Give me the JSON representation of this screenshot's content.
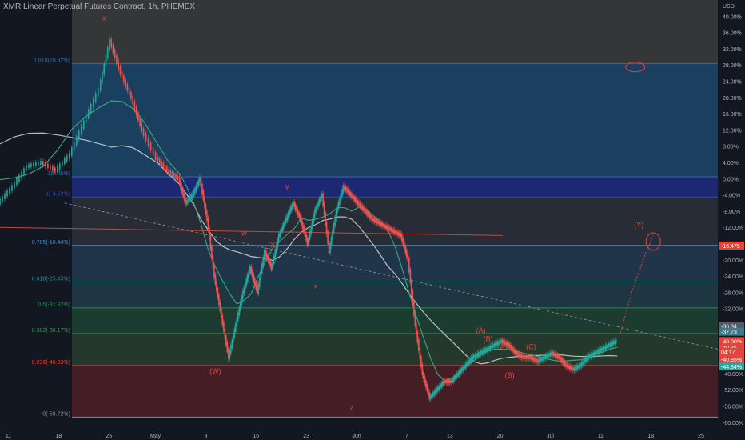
{
  "header": {
    "title": "XMR Linear Perpetual Futures Contract, 1h, PHEMEX"
  },
  "colors": {
    "background": "#131722",
    "candle_up": "#26a69a",
    "candle_down": "#ef5350",
    "wave_label": "#e0463c",
    "fib_blue": "#2f6fa3",
    "fib_navy": "#1e2a7a",
    "fib_green": "#1e4d3a",
    "fib_red": "#5a1f24"
  },
  "chart_data": {
    "type": "line",
    "price_axis": {
      "unit": "USD",
      "ticks": [
        "40.00%",
        "36.00%",
        "32.00%",
        "28.00%",
        "24.00%",
        "20.00%",
        "16.00%",
        "12.00%",
        "8.00%",
        "4.00%",
        "0.00%",
        "-4.00%",
        "-8.00%",
        "-12.00%",
        "-16.00%",
        "-20.00%",
        "-24.00%",
        "-28.00%",
        "-32.00%",
        "-36.00%",
        "-40.00%",
        "-44.00%",
        "-48.00%",
        "-52.00%",
        "-56.00%",
        "-60.00%"
      ],
      "tick_values": [
        40,
        36,
        32,
        28,
        24,
        20,
        16,
        12,
        8,
        4,
        0,
        -4,
        -8,
        -12,
        -16,
        -20,
        -24,
        -28,
        -32,
        -36,
        -40,
        -44,
        -48,
        -52,
        -56,
        -60
      ],
      "range": [
        -62,
        44
      ]
    },
    "time_axis": {
      "ticks": [
        "11",
        "18",
        "25",
        "May",
        "9",
        "16",
        "23",
        "Jun",
        "7",
        "13",
        "20",
        "Jul",
        "11",
        "18",
        "25"
      ],
      "positions": [
        0.5,
        7.5,
        14.5,
        21,
        28,
        35,
        42,
        49,
        56,
        62,
        69,
        76,
        83,
        90,
        97
      ]
    },
    "price_tags": [
      {
        "label": "-16.475",
        "value": -16.475,
        "color": "#e0463c"
      },
      {
        "label": "-36.34",
        "value": -36.3,
        "color": "#555a66"
      },
      {
        "label": "-37.73",
        "value": -37.7,
        "color": "#3d7a8a"
      },
      {
        "label": "-40.00%",
        "value": -40.0,
        "color": "#e0463c"
      },
      {
        "label": "-40.85",
        "value": -41.5,
        "color": "#e0463c"
      },
      {
        "label": "04:17",
        "value": -42.6,
        "color": "#e0463c"
      },
      {
        "label": "-40.85%",
        "value": -44.5,
        "color": "#e0463c"
      },
      {
        "label": "-44.84%",
        "value": -46.2,
        "color": "#26a69a"
      }
    ],
    "fib_levels": [
      {
        "ratio": "1.618",
        "label": "1.618(28.32%)",
        "value": 28.32,
        "color": "#2f6fa3"
      },
      {
        "ratio": "1",
        "label": "1(0.46%)",
        "value": 0.46,
        "color": "#2f6fa3"
      },
      {
        "ratio": "1",
        "label": "1(-4.52%)",
        "value": -4.52,
        "color": "#2f4fb8"
      },
      {
        "ratio": "0.786",
        "label": "0.786(-16.44%)",
        "value": -16.44,
        "color": "#4e8fbf"
      },
      {
        "ratio": "0.618",
        "label": "0.618(-25.45%)",
        "value": -25.45,
        "color": "#2a8a8a"
      },
      {
        "ratio": "0.5",
        "label": "0.5(-31.82%)",
        "value": -31.82,
        "color": "#2c8a5a"
      },
      {
        "ratio": "0.382",
        "label": "0.382(-38.17%)",
        "value": -38.17,
        "color": "#4a8a5a"
      },
      {
        "ratio": "0.236",
        "label": "0.236(-46.03%)",
        "value": -46.03,
        "color": "#e0463c"
      },
      {
        "ratio": "0",
        "label": "0(-58.72%)",
        "value": -58.72,
        "color": "#888888"
      }
    ],
    "fib_zones": [
      {
        "from": 44,
        "to": 28.32,
        "color": "#3a3a3a"
      },
      {
        "from": 28.32,
        "to": 0.46,
        "color": "#1d4466"
      },
      {
        "from": 0.46,
        "to": -4.52,
        "color": "#1e2a7a"
      },
      {
        "from": -4.52,
        "to": -16.44,
        "color": "#2a2f3a"
      },
      {
        "from": -16.44,
        "to": -25.45,
        "color": "#24384f"
      },
      {
        "from": -25.45,
        "to": -31.82,
        "color": "#1f3a46"
      },
      {
        "from": -31.82,
        "to": -38.17,
        "color": "#1e3f33"
      },
      {
        "from": -38.17,
        "to": -46.03,
        "color": "#273d2e"
      },
      {
        "from": -46.03,
        "to": -58.72,
        "color": "#4a1f25"
      }
    ],
    "price_series": {
      "name": "",
      "x": [
        0,
        2,
        4,
        6,
        8,
        10,
        12,
        14,
        15.5,
        17,
        18.5,
        20,
        22,
        23.5,
        25,
        26,
        27,
        28,
        29,
        30,
        31,
        32,
        33,
        34,
        35,
        36,
        37,
        38,
        39,
        40,
        41,
        42,
        43,
        44,
        45,
        46,
        47,
        48,
        49,
        50,
        51,
        52,
        53,
        54,
        55,
        56,
        57,
        58,
        59,
        60,
        61,
        62,
        63,
        64,
        65,
        66,
        67,
        68,
        69,
        70,
        71,
        72,
        73,
        74,
        75,
        76,
        77,
        78,
        79,
        80,
        81,
        82,
        83,
        84,
        85,
        86
      ],
      "y": [
        -6,
        -2,
        3,
        4,
        2,
        6,
        14,
        22,
        34,
        26,
        20,
        12,
        5,
        2,
        0,
        -6,
        -4,
        0,
        -10,
        -24,
        -34,
        -44,
        -36,
        -28,
        -22,
        -28,
        -18,
        -22,
        -14,
        -10,
        -6,
        -10,
        -16,
        -8,
        -4,
        -18,
        -8,
        -2,
        -4,
        -6,
        -8,
        -10,
        -11,
        -12,
        -13,
        -14,
        -20,
        -36,
        -48,
        -54,
        -52,
        -50,
        -50,
        -48,
        -46,
        -44,
        -43,
        -42,
        -41,
        -40,
        -41,
        -43,
        -44,
        -44,
        -45,
        -44,
        -43,
        -44,
        -46,
        -47,
        -46,
        -44,
        -43,
        -42,
        -41,
        -40
      ]
    },
    "annotations": [
      "x",
      "w",
      "x",
      "y",
      "x",
      "(W)",
      "(X)",
      "z",
      "(A)",
      "(B)",
      "(A)",
      "(C)",
      "(B)",
      "(Y)"
    ]
  }
}
